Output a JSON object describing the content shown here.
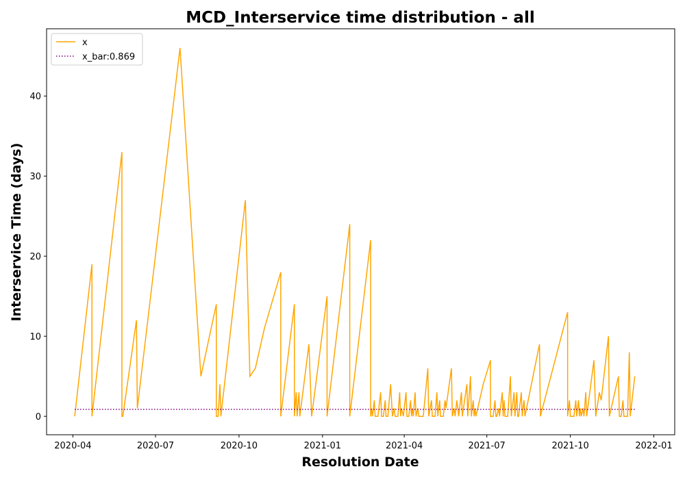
{
  "chart_data": {
    "type": "line",
    "title": "MCD_Interservice time distribution - all",
    "xlabel": "Resolution Date",
    "ylabel": "Interservice Time (days)",
    "xlim": [
      "2020-03-03",
      "2022-01-24"
    ],
    "ylim": [
      -2.3,
      48.4
    ],
    "x_ticks": [
      "2020-04",
      "2020-07",
      "2020-10",
      "2021-01",
      "2021-04",
      "2021-07",
      "2021-10",
      "2022-01"
    ],
    "y_ticks": [
      0,
      10,
      20,
      30,
      40
    ],
    "grid": false,
    "legend_position": "top-left",
    "colors": {
      "x": "#ffa500",
      "x_bar": "#800080"
    },
    "series": [
      {
        "name": "x",
        "style": "solid",
        "points": [
          [
            "2020-04-03",
            0
          ],
          [
            "2020-04-22",
            19
          ],
          [
            "2020-04-22",
            0
          ],
          [
            "2020-05-25",
            33
          ],
          [
            "2020-05-25",
            0
          ],
          [
            "2020-05-26",
            0
          ],
          [
            "2020-06-10",
            12
          ],
          [
            "2020-06-11",
            1
          ],
          [
            "2020-07-28",
            46
          ],
          [
            "2020-08-20",
            5
          ],
          [
            "2020-09-06",
            14
          ],
          [
            "2020-09-06",
            0
          ],
          [
            "2020-09-08",
            0
          ],
          [
            "2020-09-10",
            4
          ],
          [
            "2020-09-11",
            0
          ],
          [
            "2020-10-08",
            27
          ],
          [
            "2020-10-13",
            5
          ],
          [
            "2020-10-19",
            6
          ],
          [
            "2020-10-29",
            11
          ],
          [
            "2020-11-16",
            18
          ],
          [
            "2020-11-16",
            0
          ],
          [
            "2020-12-01",
            14
          ],
          [
            "2020-12-01",
            0
          ],
          [
            "2020-12-03",
            3
          ],
          [
            "2020-12-04",
            0
          ],
          [
            "2020-12-06",
            3
          ],
          [
            "2020-12-07",
            0
          ],
          [
            "2020-12-17",
            9
          ],
          [
            "2020-12-20",
            0
          ],
          [
            "2021-01-06",
            15
          ],
          [
            "2021-01-06",
            0
          ],
          [
            "2021-01-31",
            24
          ],
          [
            "2021-01-31",
            0
          ],
          [
            "2021-02-23",
            22
          ],
          [
            "2021-02-23",
            0
          ],
          [
            "2021-02-24",
            1
          ],
          [
            "2021-02-25",
            0
          ],
          [
            "2021-02-27",
            2
          ],
          [
            "2021-02-28",
            0
          ],
          [
            "2021-03-03",
            0
          ],
          [
            "2021-03-06",
            3
          ],
          [
            "2021-03-07",
            0
          ],
          [
            "2021-03-09",
            0
          ],
          [
            "2021-03-11",
            2
          ],
          [
            "2021-03-12",
            0
          ],
          [
            "2021-03-14",
            0
          ],
          [
            "2021-03-17",
            4
          ],
          [
            "2021-03-19",
            0
          ],
          [
            "2021-03-21",
            1
          ],
          [
            "2021-03-22",
            0
          ],
          [
            "2021-03-25",
            0
          ],
          [
            "2021-03-27",
            3
          ],
          [
            "2021-03-28",
            0
          ],
          [
            "2021-03-29",
            1
          ],
          [
            "2021-03-31",
            0
          ],
          [
            "2021-04-03",
            3
          ],
          [
            "2021-04-04",
            0
          ],
          [
            "2021-04-06",
            0
          ],
          [
            "2021-04-08",
            2
          ],
          [
            "2021-04-09",
            0
          ],
          [
            "2021-04-10",
            1
          ],
          [
            "2021-04-11",
            0
          ],
          [
            "2021-04-13",
            3
          ],
          [
            "2021-04-14",
            0
          ],
          [
            "2021-04-16",
            1
          ],
          [
            "2021-04-17",
            0
          ],
          [
            "2021-04-22",
            0
          ],
          [
            "2021-04-27",
            6
          ],
          [
            "2021-04-28",
            0
          ],
          [
            "2021-05-01",
            2
          ],
          [
            "2021-05-02",
            0
          ],
          [
            "2021-05-05",
            0
          ],
          [
            "2021-05-07",
            3
          ],
          [
            "2021-05-08",
            0
          ],
          [
            "2021-05-10",
            2
          ],
          [
            "2021-05-11",
            0
          ],
          [
            "2021-05-14",
            0
          ],
          [
            "2021-05-16",
            2
          ],
          [
            "2021-05-17",
            1
          ],
          [
            "2021-05-23",
            6
          ],
          [
            "2021-05-24",
            0
          ],
          [
            "2021-05-26",
            1
          ],
          [
            "2021-05-27",
            0
          ],
          [
            "2021-05-29",
            2
          ],
          [
            "2021-05-31",
            0
          ],
          [
            "2021-06-03",
            3
          ],
          [
            "2021-06-04",
            0
          ],
          [
            "2021-06-09",
            4
          ],
          [
            "2021-06-10",
            0
          ],
          [
            "2021-06-13",
            5
          ],
          [
            "2021-06-14",
            0
          ],
          [
            "2021-06-16",
            2
          ],
          [
            "2021-06-17",
            0
          ],
          [
            "2021-06-18",
            1
          ],
          [
            "2021-06-19",
            0
          ],
          [
            "2021-06-27",
            4
          ],
          [
            "2021-07-05",
            7
          ],
          [
            "2021-07-05",
            0
          ],
          [
            "2021-07-08",
            0
          ],
          [
            "2021-07-10",
            2
          ],
          [
            "2021-07-11",
            0
          ],
          [
            "2021-07-12",
            0
          ],
          [
            "2021-07-14",
            1
          ],
          [
            "2021-07-15",
            0
          ],
          [
            "2021-07-18",
            3
          ],
          [
            "2021-07-19",
            0
          ],
          [
            "2021-07-20",
            2
          ],
          [
            "2021-07-21",
            0
          ],
          [
            "2021-07-24",
            0
          ],
          [
            "2021-07-27",
            5
          ],
          [
            "2021-07-28",
            0
          ],
          [
            "2021-07-31",
            3
          ],
          [
            "2021-08-01",
            0
          ],
          [
            "2021-08-03",
            3
          ],
          [
            "2021-08-04",
            0
          ],
          [
            "2021-08-05",
            0
          ],
          [
            "2021-08-08",
            3
          ],
          [
            "2021-08-09",
            0
          ],
          [
            "2021-08-11",
            2
          ],
          [
            "2021-08-12",
            0
          ],
          [
            "2021-08-28",
            9
          ],
          [
            "2021-08-29",
            0
          ],
          [
            "2021-09-28",
            13
          ],
          [
            "2021-09-28",
            0
          ],
          [
            "2021-09-30",
            2
          ],
          [
            "2021-10-01",
            0
          ],
          [
            "2021-10-05",
            0
          ],
          [
            "2021-10-07",
            2
          ],
          [
            "2021-10-08",
            0
          ],
          [
            "2021-10-10",
            2
          ],
          [
            "2021-10-11",
            0
          ],
          [
            "2021-10-12",
            1
          ],
          [
            "2021-10-13",
            0
          ],
          [
            "2021-10-15",
            1
          ],
          [
            "2021-10-16",
            0
          ],
          [
            "2021-10-18",
            3
          ],
          [
            "2021-10-19",
            0
          ],
          [
            "2021-10-27",
            7
          ],
          [
            "2021-10-29",
            0
          ],
          [
            "2021-11-02",
            3
          ],
          [
            "2021-11-04",
            2
          ],
          [
            "2021-11-12",
            10
          ],
          [
            "2021-11-13",
            0
          ],
          [
            "2021-11-23",
            5
          ],
          [
            "2021-11-24",
            0
          ],
          [
            "2021-11-26",
            0
          ],
          [
            "2021-11-28",
            2
          ],
          [
            "2021-11-29",
            0
          ],
          [
            "2021-12-03",
            0
          ],
          [
            "2021-12-05",
            8
          ],
          [
            "2021-12-06",
            0
          ],
          [
            "2021-12-11",
            5
          ]
        ]
      },
      {
        "name": "x_bar:0.869",
        "style": "dotted",
        "points": [
          [
            "2020-04-03",
            0.869
          ],
          [
            "2021-12-11",
            0.869
          ]
        ]
      }
    ]
  }
}
